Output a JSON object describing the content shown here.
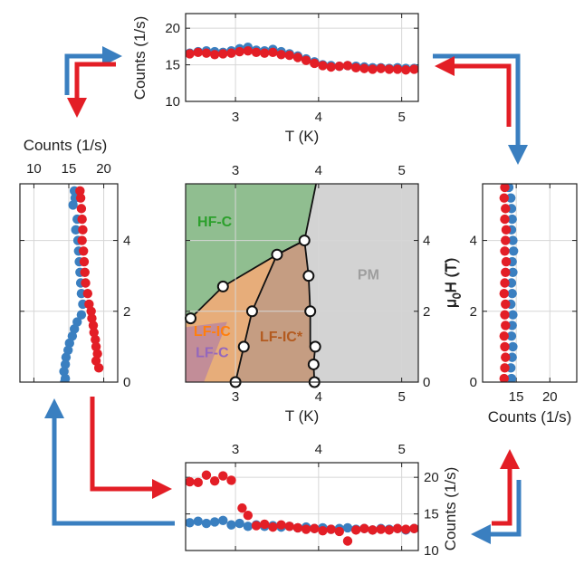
{
  "chart_data": [
    {
      "id": "phase",
      "type": "scatter",
      "xlabel": "T (K)",
      "ylabel": "μ0H (T)",
      "ylabel_main": "μ",
      "ylabel_sub": "0",
      "ylabel_rest": "H (T)",
      "xlim": [
        2.4,
        5.2
      ],
      "ylim": [
        0,
        5.6
      ],
      "xticks": [
        3,
        4,
        5
      ],
      "yticks": [
        0,
        2,
        4
      ],
      "regions": [
        {
          "name": "HF-C",
          "color": "#2ca02c"
        },
        {
          "name": "PM",
          "color": "#9e9e9e"
        },
        {
          "name": "LF-IC*",
          "color": "#b35a1f"
        },
        {
          "name": "LF-IC",
          "color": "#ff7f0e"
        },
        {
          "name": "LF-C",
          "color": "#9467bd"
        }
      ],
      "boundaries": [
        {
          "x": [
            2.46,
            2.85,
            3.5,
            3.83
          ],
          "y": [
            1.8,
            2.7,
            3.6,
            4.0
          ]
        },
        {
          "x": [
            3.0,
            3.1,
            3.2,
            3.5,
            3.83
          ],
          "y": [
            0.0,
            1.0,
            2.0,
            3.6,
            4.0
          ]
        },
        {
          "x": [
            3.83,
            3.88,
            3.9,
            3.9,
            3.96,
            3.94,
            3.95
          ],
          "y": [
            4.0,
            3.0,
            2.0,
            1.0,
            1.0,
            0.5,
            0.0
          ]
        },
        {
          "x": [
            3.83,
            3.97
          ],
          "y": [
            4.0,
            5.6
          ]
        }
      ],
      "points": {
        "x": [
          2.46,
          2.85,
          3.5,
          3.83,
          3.2,
          3.1,
          3.0,
          3.88,
          3.9,
          3.96,
          3.94,
          3.95
        ],
        "y": [
          1.8,
          2.7,
          3.6,
          4.0,
          2.0,
          1.0,
          0.0,
          3.0,
          2.0,
          1.0,
          0.5,
          0.0
        ]
      }
    },
    {
      "id": "top",
      "type": "scatter",
      "xlabel": "T (K)",
      "ylabel": "Counts (1/s)",
      "xlim": [
        2.4,
        5.2
      ],
      "ylim": [
        10,
        22
      ],
      "xticks": [
        3,
        4,
        5
      ],
      "yticks": [
        10,
        15,
        20
      ],
      "series": [
        {
          "color": "#3a7fc0",
          "x": [
            2.45,
            2.55,
            2.65,
            2.75,
            2.85,
            2.95,
            3.05,
            3.15,
            3.25,
            3.35,
            3.45,
            3.55,
            3.65,
            3.75,
            3.85,
            3.95,
            4.05,
            4.15,
            4.25,
            4.35,
            4.45,
            4.55,
            4.65,
            4.75,
            4.85,
            4.95,
            5.05,
            5.15
          ],
          "y": [
            16.6,
            16.8,
            16.9,
            16.8,
            16.7,
            16.9,
            17.2,
            17.4,
            17.0,
            16.9,
            17.1,
            16.8,
            16.5,
            16.2,
            15.8,
            15.4,
            15.0,
            14.9,
            14.8,
            14.9,
            14.8,
            14.7,
            14.6,
            14.6,
            14.5,
            14.6,
            14.5,
            14.5
          ]
        },
        {
          "color": "#e31e26",
          "x": [
            2.45,
            2.55,
            2.65,
            2.75,
            2.85,
            2.95,
            3.05,
            3.15,
            3.25,
            3.35,
            3.45,
            3.55,
            3.65,
            3.75,
            3.85,
            3.95,
            4.05,
            4.15,
            4.25,
            4.35,
            4.45,
            4.55,
            4.65,
            4.75,
            4.85,
            4.95,
            5.05,
            5.15
          ],
          "y": [
            16.5,
            16.7,
            16.6,
            16.4,
            16.5,
            16.6,
            16.8,
            16.9,
            16.7,
            16.6,
            16.7,
            16.4,
            16.3,
            16.0,
            15.6,
            15.2,
            14.9,
            14.7,
            14.8,
            14.9,
            14.6,
            14.5,
            14.4,
            14.5,
            14.4,
            14.4,
            14.3,
            14.4
          ]
        }
      ]
    },
    {
      "id": "bottom",
      "type": "scatter",
      "ylabel": "Counts (1/s)",
      "xlim": [
        2.4,
        5.2
      ],
      "ylim": [
        10,
        22
      ],
      "xticks": [
        3,
        4,
        5
      ],
      "yticks": [
        10,
        15,
        20
      ],
      "series": [
        {
          "color": "#3a7fc0",
          "x": [
            2.45,
            2.55,
            2.65,
            2.75,
            2.85,
            2.95,
            3.05,
            3.15,
            3.25,
            3.35,
            3.45,
            3.55,
            3.65,
            3.75,
            3.85,
            3.95,
            4.05,
            4.15,
            4.25,
            4.35,
            4.45,
            4.55,
            4.65,
            4.75,
            4.85,
            4.95,
            5.05,
            5.15
          ],
          "y": [
            13.8,
            14.0,
            13.7,
            13.9,
            14.1,
            13.5,
            13.7,
            13.3,
            13.5,
            13.3,
            13.4,
            13.2,
            13.3,
            13.1,
            13.2,
            13.0,
            13.1,
            12.9,
            13.0,
            13.1,
            12.9,
            13.0,
            12.8,
            13.0,
            12.9,
            13.0,
            12.8,
            13.0
          ]
        },
        {
          "color": "#e31e26",
          "x": [
            2.45,
            2.55,
            2.65,
            2.75,
            2.85,
            2.95,
            3.08,
            3.15,
            3.25,
            3.35,
            3.45,
            3.55,
            3.65,
            3.75,
            3.85,
            3.95,
            4.05,
            4.15,
            4.25,
            4.35,
            4.45,
            4.55,
            4.65,
            4.75,
            4.85,
            4.95,
            5.05,
            5.15
          ],
          "y": [
            19.4,
            19.3,
            20.3,
            19.5,
            20.2,
            19.6,
            15.8,
            14.8,
            13.4,
            13.6,
            13.2,
            13.5,
            13.3,
            13.1,
            12.9,
            13.0,
            12.7,
            12.9,
            12.6,
            11.3,
            12.8,
            13.0,
            12.8,
            12.9,
            12.8,
            13.0,
            12.9,
            13.0
          ]
        }
      ]
    },
    {
      "id": "left",
      "type": "scatter",
      "xlabel": "Counts (1/s)",
      "ylim": [
        0,
        5.6
      ],
      "xlim": [
        8,
        22
      ],
      "xticks": [
        10,
        15,
        20
      ],
      "yticks": [
        0,
        2,
        4
      ],
      "series": [
        {
          "color": "#3a7fc0",
          "y": [
            5.4,
            5.2,
            5.0,
            4.6,
            4.3,
            4.0,
            3.7,
            3.4,
            3.1,
            2.8,
            2.5,
            2.2,
            1.9,
            1.7,
            1.5,
            1.3,
            1.1,
            0.9,
            0.7,
            0.5,
            0.3,
            0.1,
            0.0
          ],
          "x": [
            15.8,
            15.9,
            15.6,
            16.2,
            16.0,
            16.3,
            16.4,
            16.5,
            16.6,
            16.7,
            16.8,
            17.0,
            16.8,
            16.2,
            15.8,
            15.5,
            15.1,
            14.9,
            14.6,
            14.5,
            14.3,
            14.5,
            14.4
          ]
        },
        {
          "color": "#e31e26",
          "y": [
            5.4,
            5.2,
            4.9,
            4.6,
            4.3,
            4.0,
            3.7,
            3.4,
            3.1,
            2.8,
            2.5,
            2.2,
            2.0,
            1.8,
            1.6,
            1.4,
            1.2,
            1.0,
            0.8,
            0.6,
            0.4
          ],
          "x": [
            16.6,
            16.7,
            16.8,
            16.9,
            17.0,
            16.9,
            17.1,
            17.2,
            17.3,
            17.4,
            17.7,
            17.9,
            18.2,
            18.3,
            18.5,
            18.6,
            18.8,
            18.9,
            19.1,
            18.9,
            19.3
          ]
        }
      ]
    },
    {
      "id": "right",
      "type": "scatter",
      "xlabel": "Counts (1/s)",
      "ylabel": "μ0H (T)",
      "ylabel_main": "μ",
      "ylabel_sub": "0",
      "ylabel_rest": "H (T)",
      "ylim": [
        0,
        5.6
      ],
      "xlim": [
        10,
        24
      ],
      "xticks": [
        15,
        20
      ],
      "yticks": [
        0,
        2,
        4
      ],
      "series": [
        {
          "color": "#3a7fc0",
          "y": [
            5.5,
            5.2,
            4.9,
            4.6,
            4.3,
            4.0,
            3.7,
            3.4,
            3.1,
            2.8,
            2.5,
            2.2,
            1.9,
            1.6,
            1.3,
            1.0,
            0.7,
            0.4,
            0.1
          ],
          "x": [
            13.9,
            14.2,
            14.3,
            14.4,
            14.3,
            14.5,
            14.6,
            14.4,
            14.5,
            14.3,
            14.4,
            14.2,
            14.5,
            14.4,
            14.3,
            14.5,
            14.4,
            14.2,
            14.3
          ]
        },
        {
          "color": "#e31e26",
          "y": [
            5.5,
            5.2,
            4.9,
            4.6,
            4.3,
            4.0,
            3.7,
            3.4,
            3.1,
            2.8,
            2.5,
            2.2,
            1.9,
            1.6,
            1.3,
            1.0,
            0.7,
            0.4,
            0.1
          ],
          "x": [
            13.3,
            13.2,
            13.4,
            13.3,
            13.5,
            13.4,
            13.3,
            13.5,
            13.4,
            13.3,
            13.2,
            13.4,
            13.3,
            13.4,
            13.2,
            13.3,
            13.4,
            13.3,
            13.2
          ]
        }
      ]
    }
  ],
  "arrows": {
    "blue": "#3a7fc0",
    "red": "#e31e26"
  }
}
